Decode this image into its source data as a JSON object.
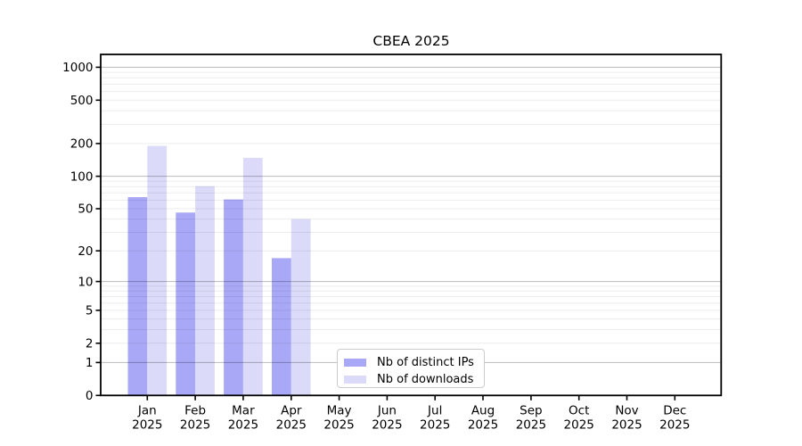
{
  "chart_data": {
    "type": "bar",
    "title": "CBEA 2025",
    "categories": [
      "Jan",
      "Feb",
      "Mar",
      "Apr",
      "May",
      "Jun",
      "Jul",
      "Aug",
      "Sep",
      "Oct",
      "Nov",
      "Dec"
    ],
    "year_label": "2025",
    "series": [
      {
        "name": "Nb of distinct IPs",
        "color": "#a8a8f7",
        "values": [
          64,
          46,
          61,
          17,
          0,
          0,
          0,
          0,
          0,
          0,
          0,
          0
        ]
      },
      {
        "name": "Nb of downloads",
        "color": "#dbdbf9",
        "values": [
          190,
          81,
          148,
          40,
          0,
          0,
          0,
          0,
          0,
          0,
          0,
          0
        ]
      }
    ],
    "y_axis": {
      "scale": "log1p",
      "ticks": [
        0,
        1,
        2,
        5,
        10,
        20,
        50,
        100,
        200,
        500,
        1000
      ],
      "major_grid": [
        1,
        10,
        100,
        1000
      ],
      "range": [
        0,
        1280
      ]
    },
    "grid": {
      "show": true,
      "minor_per_decade": [
        2,
        3,
        4,
        5,
        6,
        7,
        8,
        9
      ]
    },
    "legend": {
      "position": "inside-bottom-center"
    },
    "xlabel": "",
    "ylabel": ""
  },
  "colors": {
    "axis": "#000000",
    "major_grid": "rgba(0,0,0,0.24)",
    "minor_grid": "rgba(0,0,0,0.075)",
    "legend_border": "#cccccc",
    "background": "#ffffff"
  }
}
